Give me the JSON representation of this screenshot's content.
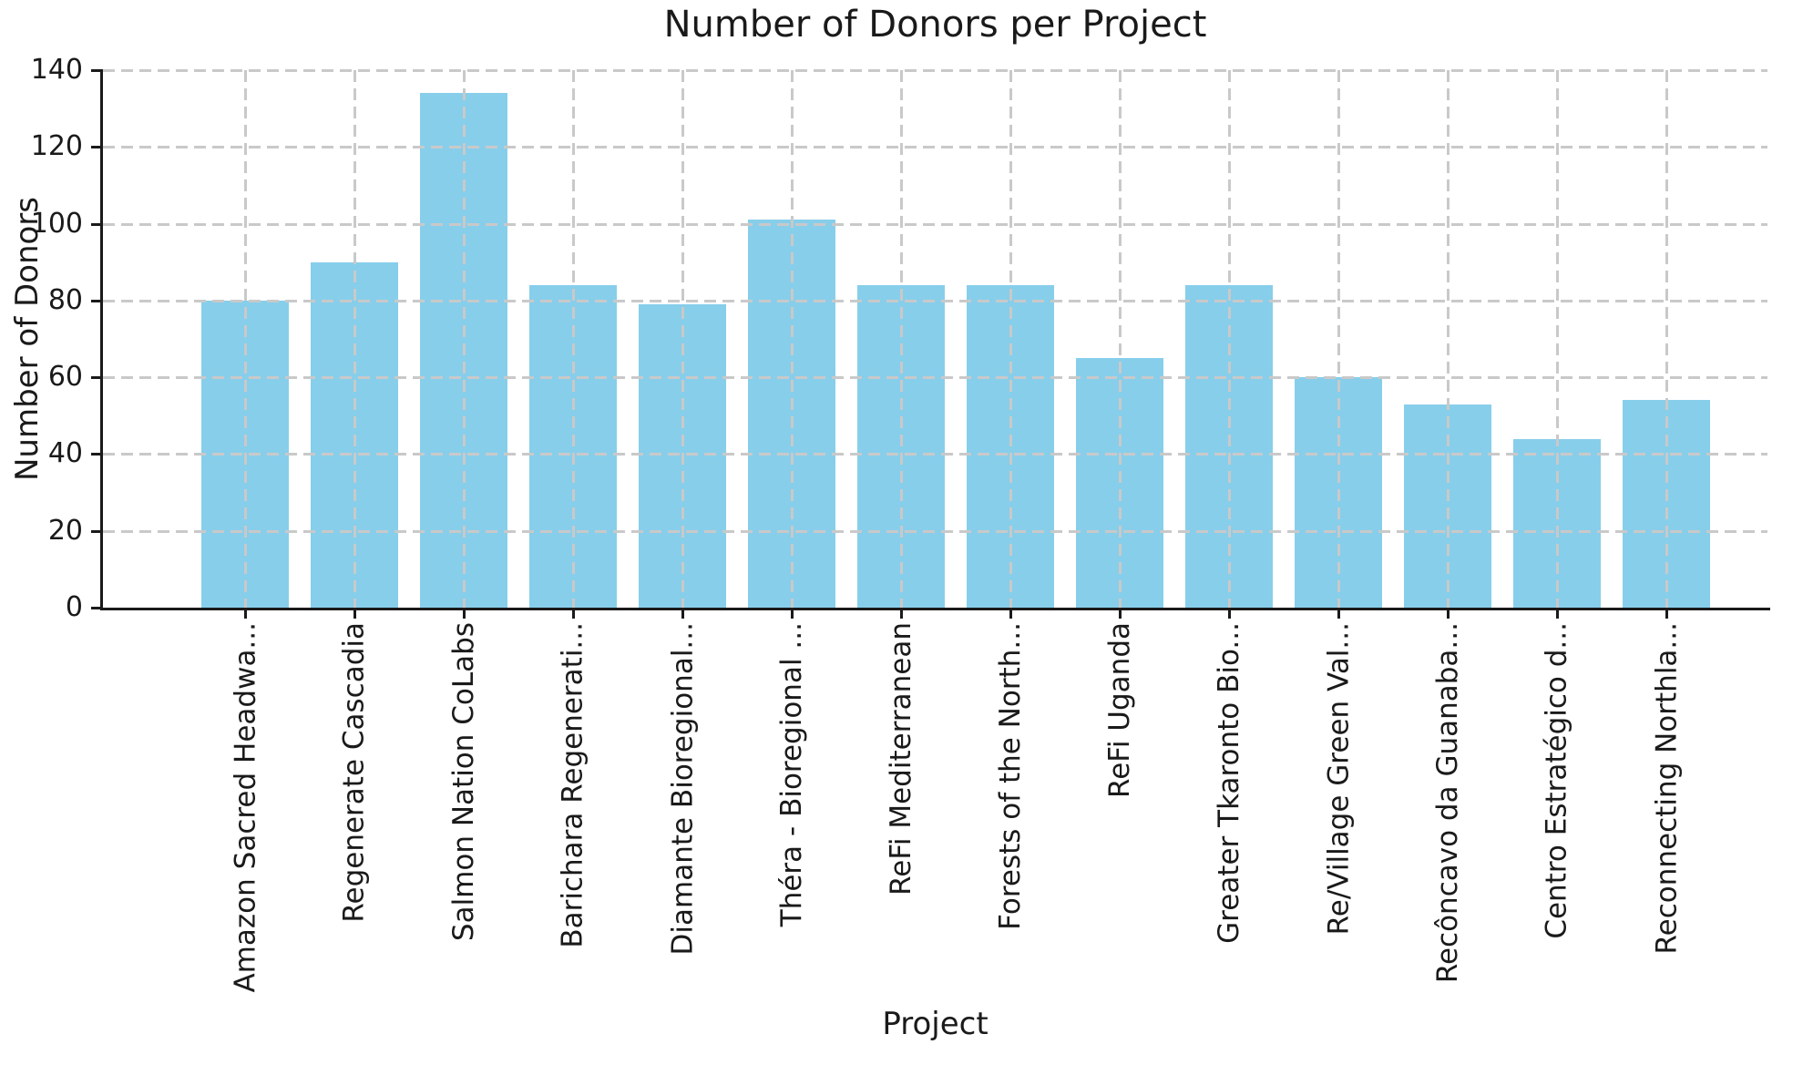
{
  "chart_data": {
    "type": "bar",
    "title": "Number of Donors per Project",
    "xlabel": "Project",
    "ylabel": "Number of Donors",
    "categories": [
      "Amazon Sacred Headwa...",
      "Regenerate Cascadia",
      "Salmon Nation CoLabs",
      "Barichara Regenerati...",
      "Diamante Bioregional...",
      "Théra - Bioregional ...",
      "ReFi Mediterranean",
      "Forests of the North...",
      "ReFi Uganda",
      "Greater Tkaronto Bio...",
      "Re/Village Green Val...",
      "Recôncavo da Guanaba...",
      "Centro Estratégico d...",
      "Reconnecting Northla..."
    ],
    "values": [
      80,
      90,
      134,
      84,
      79,
      101,
      84,
      84,
      65,
      84,
      60,
      53,
      44,
      54
    ],
    "yticks": [
      0,
      20,
      40,
      60,
      80,
      100,
      120,
      140
    ],
    "ylim": [
      0,
      140
    ],
    "xtick_rotation_deg": 90,
    "grid": "dashed-both-axes-over-bars",
    "legend": "none",
    "colors": {
      "bar": "#87CEEB",
      "grid": "#c9c9c9",
      "axis": "#1a1a1a",
      "text": "#1a1a1a",
      "background": "#ffffff"
    }
  }
}
